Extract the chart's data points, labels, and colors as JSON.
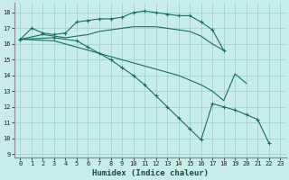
{
  "bg_color": "#c8ece8",
  "grid_color": "#a0d4cc",
  "line_color": "#1a6e60",
  "xlabel": "Humidex (Indice chaleur)",
  "xlim": [
    -0.5,
    23.5
  ],
  "ylim": [
    8.8,
    18.6
  ],
  "yticks": [
    9,
    10,
    11,
    12,
    13,
    14,
    15,
    16,
    17,
    18
  ],
  "xticks": [
    0,
    1,
    2,
    3,
    4,
    5,
    6,
    7,
    8,
    9,
    10,
    11,
    12,
    13,
    14,
    15,
    16,
    17,
    18,
    19,
    20,
    21,
    22,
    23
  ],
  "lines": [
    {
      "x": [
        0,
        1,
        2,
        3,
        4,
        5,
        6,
        7,
        8,
        9,
        10,
        11,
        12,
        13,
        14,
        15,
        16,
        17,
        18
      ],
      "y": [
        16.3,
        17.0,
        16.7,
        16.6,
        16.7,
        17.4,
        17.5,
        17.6,
        17.6,
        17.7,
        18.0,
        18.1,
        18.0,
        17.9,
        17.8,
        17.8,
        17.4,
        16.9,
        15.6
      ],
      "marker": true
    },
    {
      "x": [
        0,
        2,
        3,
        4,
        5,
        6,
        7,
        8,
        9,
        10,
        11,
        12,
        13,
        14,
        15,
        16,
        17,
        18
      ],
      "y": [
        16.3,
        16.6,
        16.5,
        16.4,
        16.5,
        16.6,
        16.8,
        16.9,
        17.0,
        17.1,
        17.1,
        17.1,
        17.0,
        16.9,
        16.8,
        16.5,
        16.0,
        15.6
      ],
      "marker": false
    },
    {
      "x": [
        0,
        3,
        4,
        5,
        6,
        7,
        8,
        9,
        10,
        11,
        12,
        13,
        14,
        15,
        16,
        17,
        18,
        19,
        20
      ],
      "y": [
        16.3,
        16.2,
        16.0,
        15.8,
        15.6,
        15.4,
        15.2,
        15.0,
        14.8,
        14.6,
        14.4,
        14.2,
        14.0,
        13.7,
        13.4,
        13.0,
        12.4,
        14.1,
        13.5
      ],
      "marker": false
    },
    {
      "x": [
        0,
        3,
        5,
        6,
        7,
        8,
        9,
        10,
        11,
        12,
        13,
        14,
        15,
        16,
        17,
        18,
        19,
        20,
        21,
        22,
        23
      ],
      "y": [
        16.3,
        16.4,
        16.2,
        15.8,
        15.4,
        15.0,
        14.5,
        14.0,
        13.4,
        12.7,
        12.0,
        11.3,
        10.6,
        9.9,
        12.2,
        12.0,
        11.8,
        11.5,
        11.2,
        9.7,
        null
      ],
      "marker": true
    }
  ]
}
